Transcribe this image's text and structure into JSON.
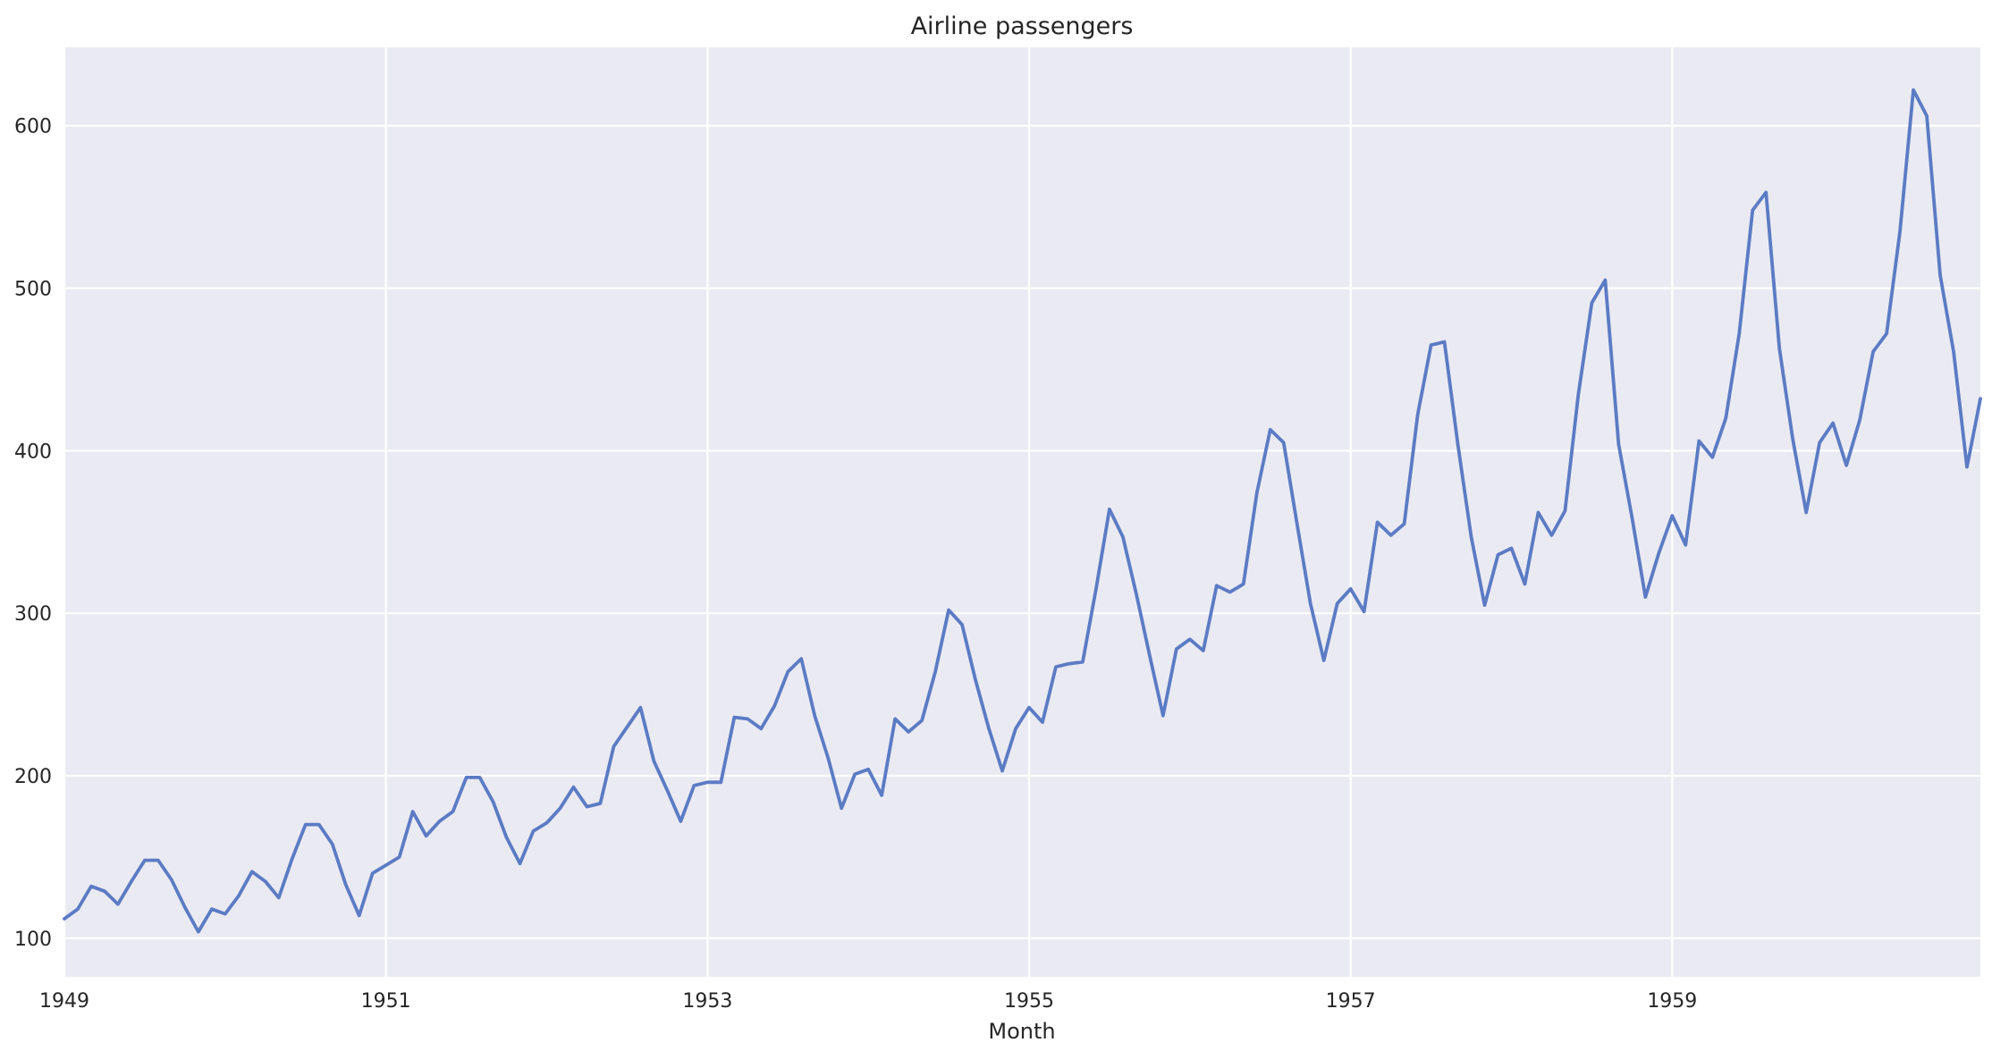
{
  "chart_data": {
    "type": "line",
    "title": "Airline passengers",
    "xlabel": "Month",
    "ylabel": "",
    "x_ticks": [
      "1949",
      "1951",
      "1953",
      "1955",
      "1957",
      "1959"
    ],
    "y_ticks": [
      100,
      200,
      300,
      400,
      500,
      600
    ],
    "xlim": [
      "1949-01",
      "1960-12"
    ],
    "ylim": [
      76.3,
      648.2
    ],
    "grid": true,
    "series": [
      {
        "x": [
          "1949-01",
          "1949-02",
          "1949-03",
          "1949-04",
          "1949-05",
          "1949-06",
          "1949-07",
          "1949-08",
          "1949-09",
          "1949-10",
          "1949-11",
          "1949-12",
          "1950-01",
          "1950-02",
          "1950-03",
          "1950-04",
          "1950-05",
          "1950-06",
          "1950-07",
          "1950-08",
          "1950-09",
          "1950-10",
          "1950-11",
          "1950-12",
          "1951-01",
          "1951-02",
          "1951-03",
          "1951-04",
          "1951-05",
          "1951-06",
          "1951-07",
          "1951-08",
          "1951-09",
          "1951-10",
          "1951-11",
          "1951-12",
          "1952-01",
          "1952-02",
          "1952-03",
          "1952-04",
          "1952-05",
          "1952-06",
          "1952-07",
          "1952-08",
          "1952-09",
          "1952-10",
          "1952-11",
          "1952-12",
          "1953-01",
          "1953-02",
          "1953-03",
          "1953-04",
          "1953-05",
          "1953-06",
          "1953-07",
          "1953-08",
          "1953-09",
          "1953-10",
          "1953-11",
          "1953-12",
          "1954-01",
          "1954-02",
          "1954-03",
          "1954-04",
          "1954-05",
          "1954-06",
          "1954-07",
          "1954-08",
          "1954-09",
          "1954-10",
          "1954-11",
          "1954-12",
          "1955-01",
          "1955-02",
          "1955-03",
          "1955-04",
          "1955-05",
          "1955-06",
          "1955-07",
          "1955-08",
          "1955-09",
          "1955-10",
          "1955-11",
          "1955-12",
          "1956-01",
          "1956-02",
          "1956-03",
          "1956-04",
          "1956-05",
          "1956-06",
          "1956-07",
          "1956-08",
          "1956-09",
          "1956-10",
          "1956-11",
          "1956-12",
          "1957-01",
          "1957-02",
          "1957-03",
          "1957-04",
          "1957-05",
          "1957-06",
          "1957-07",
          "1957-08",
          "1957-09",
          "1957-10",
          "1957-11",
          "1957-12",
          "1958-01",
          "1958-02",
          "1958-03",
          "1958-04",
          "1958-05",
          "1958-06",
          "1958-07",
          "1958-08",
          "1958-09",
          "1958-10",
          "1958-11",
          "1958-12",
          "1959-01",
          "1959-02",
          "1959-03",
          "1959-04",
          "1959-05",
          "1959-06",
          "1959-07",
          "1959-08",
          "1959-09",
          "1959-10",
          "1959-11",
          "1959-12",
          "1960-01",
          "1960-02",
          "1960-03",
          "1960-04",
          "1960-05",
          "1960-06",
          "1960-07",
          "1960-08",
          "1960-09",
          "1960-10",
          "1960-11",
          "1960-12"
        ],
        "values": [
          112,
          118,
          132,
          129,
          121,
          135,
          148,
          148,
          136,
          119,
          104,
          118,
          115,
          126,
          141,
          135,
          125,
          149,
          170,
          170,
          158,
          133,
          114,
          140,
          145,
          150,
          178,
          163,
          172,
          178,
          199,
          199,
          184,
          162,
          146,
          166,
          171,
          180,
          193,
          181,
          183,
          218,
          230,
          242,
          209,
          191,
          172,
          194,
          196,
          196,
          236,
          235,
          229,
          243,
          264,
          272,
          237,
          211,
          180,
          201,
          204,
          188,
          235,
          227,
          234,
          264,
          302,
          293,
          259,
          229,
          203,
          229,
          242,
          233,
          267,
          269,
          270,
          315,
          364,
          347,
          312,
          274,
          237,
          278,
          284,
          277,
          317,
          313,
          318,
          374,
          413,
          405,
          355,
          306,
          271,
          306,
          315,
          301,
          356,
          348,
          355,
          422,
          465,
          467,
          404,
          347,
          305,
          336,
          340,
          318,
          362,
          348,
          363,
          435,
          491,
          505,
          404,
          359,
          310,
          337,
          360,
          342,
          406,
          396,
          420,
          472,
          548,
          559,
          463,
          407,
          362,
          405,
          417,
          391,
          419,
          461,
          472,
          535,
          622,
          606,
          508,
          461,
          390,
          432
        ]
      }
    ]
  },
  "colors": {
    "plot_background": "#eaeaf2",
    "grid": "#ffffff",
    "line": "#5b7bc4",
    "text": "#262626"
  }
}
